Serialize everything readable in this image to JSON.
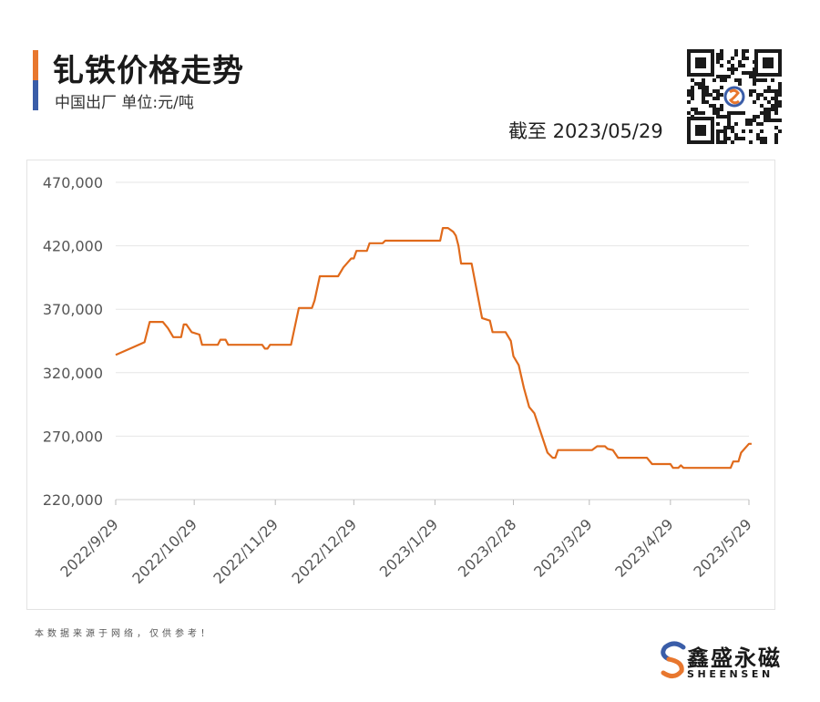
{
  "header": {
    "title": "钆铁价格走势",
    "subtitle": "中国出厂  单位:元/吨",
    "as_of": "截至 2023/05/29"
  },
  "footer": {
    "note": "本数据来源于网络，仅供参考！",
    "brand_cn": "鑫盛永磁",
    "brand_en": "SHEENSEN"
  },
  "colors": {
    "line": "#e06a1b",
    "grid": "#e6e6e6",
    "accent_orange": "#e8772e",
    "accent_blue": "#3a5da8"
  },
  "chart_data": {
    "type": "line",
    "title": "钆铁价格走势",
    "ylim": [
      220000,
      470000
    ],
    "yticks": [
      220000,
      270000,
      320000,
      370000,
      420000,
      470000
    ],
    "ytick_labels": [
      "220,000",
      "270,000",
      "320,000",
      "370,000",
      "420,000",
      "470,000"
    ],
    "xtick_labels": [
      "2022/9/29",
      "2022/10/29",
      "2022/11/29",
      "2022/12/29",
      "2023/1/29",
      "2023/2/28",
      "2023/3/29",
      "2023/4/29",
      "2023/5/29"
    ],
    "xtick_dates": [
      "2022-09-29",
      "2022-10-29",
      "2022-11-29",
      "2022-12-29",
      "2023-01-29",
      "2023-02-28",
      "2023-03-29",
      "2023-04-29",
      "2023-05-29"
    ],
    "grid": true,
    "series": [
      {
        "points": [
          [
            "2022-09-29",
            334000
          ],
          [
            "2022-10-10",
            344000
          ],
          [
            "2022-10-12",
            360000
          ],
          [
            "2022-10-17",
            360000
          ],
          [
            "2022-10-19",
            355000
          ],
          [
            "2022-10-21",
            348000
          ],
          [
            "2022-10-24",
            348000
          ],
          [
            "2022-10-25",
            358000
          ],
          [
            "2022-10-26",
            358000
          ],
          [
            "2022-10-28",
            352000
          ],
          [
            "2022-10-31",
            350000
          ],
          [
            "2022-11-01",
            342000
          ],
          [
            "2022-11-07",
            342000
          ],
          [
            "2022-11-08",
            346000
          ],
          [
            "2022-11-10",
            346000
          ],
          [
            "2022-11-11",
            342000
          ],
          [
            "2022-11-24",
            342000
          ],
          [
            "2022-11-25",
            339000
          ],
          [
            "2022-11-26",
            339000
          ],
          [
            "2022-11-27",
            342000
          ],
          [
            "2022-12-05",
            342000
          ],
          [
            "2022-12-08",
            371000
          ],
          [
            "2022-12-13",
            371000
          ],
          [
            "2022-12-14",
            377000
          ],
          [
            "2022-12-16",
            396000
          ],
          [
            "2022-12-23",
            396000
          ],
          [
            "2022-12-25",
            403000
          ],
          [
            "2022-12-28",
            410000
          ],
          [
            "2022-12-29",
            410000
          ],
          [
            "2022-12-30",
            416000
          ],
          [
            "2023-01-03",
            416000
          ],
          [
            "2023-01-04",
            422000
          ],
          [
            "2023-01-09",
            422000
          ],
          [
            "2023-01-10",
            424000
          ],
          [
            "2023-01-31",
            424000
          ],
          [
            "2023-02-01",
            434000
          ],
          [
            "2023-02-03",
            434000
          ],
          [
            "2023-02-05",
            431000
          ],
          [
            "2023-02-06",
            428000
          ],
          [
            "2023-02-07",
            420000
          ],
          [
            "2023-02-08",
            406000
          ],
          [
            "2023-02-12",
            406000
          ],
          [
            "2023-02-16",
            363000
          ],
          [
            "2023-02-19",
            361000
          ],
          [
            "2023-02-20",
            352000
          ],
          [
            "2023-02-25",
            352000
          ],
          [
            "2023-02-27",
            345000
          ],
          [
            "2023-02-28",
            333000
          ],
          [
            "2023-03-02",
            326000
          ],
          [
            "2023-03-04",
            308000
          ],
          [
            "2023-03-06",
            293000
          ],
          [
            "2023-03-08",
            288000
          ],
          [
            "2023-03-13",
            257000
          ],
          [
            "2023-03-15",
            253000
          ],
          [
            "2023-03-16",
            253000
          ],
          [
            "2023-03-17",
            259000
          ],
          [
            "2023-03-30",
            259000
          ],
          [
            "2023-04-01",
            262000
          ],
          [
            "2023-04-04",
            262000
          ],
          [
            "2023-04-05",
            260000
          ],
          [
            "2023-04-07",
            259000
          ],
          [
            "2023-04-09",
            253000
          ],
          [
            "2023-04-20",
            253000
          ],
          [
            "2023-04-22",
            248000
          ],
          [
            "2023-04-29",
            248000
          ],
          [
            "2023-04-30",
            245000
          ],
          [
            "2023-05-02",
            245000
          ],
          [
            "2023-05-03",
            247000
          ],
          [
            "2023-05-04",
            245000
          ],
          [
            "2023-05-22",
            245000
          ],
          [
            "2023-05-23",
            250000
          ],
          [
            "2023-05-25",
            250000
          ],
          [
            "2023-05-26",
            257000
          ],
          [
            "2023-05-29",
            264000
          ],
          [
            "2023-05-30",
            264000
          ]
        ]
      }
    ]
  }
}
